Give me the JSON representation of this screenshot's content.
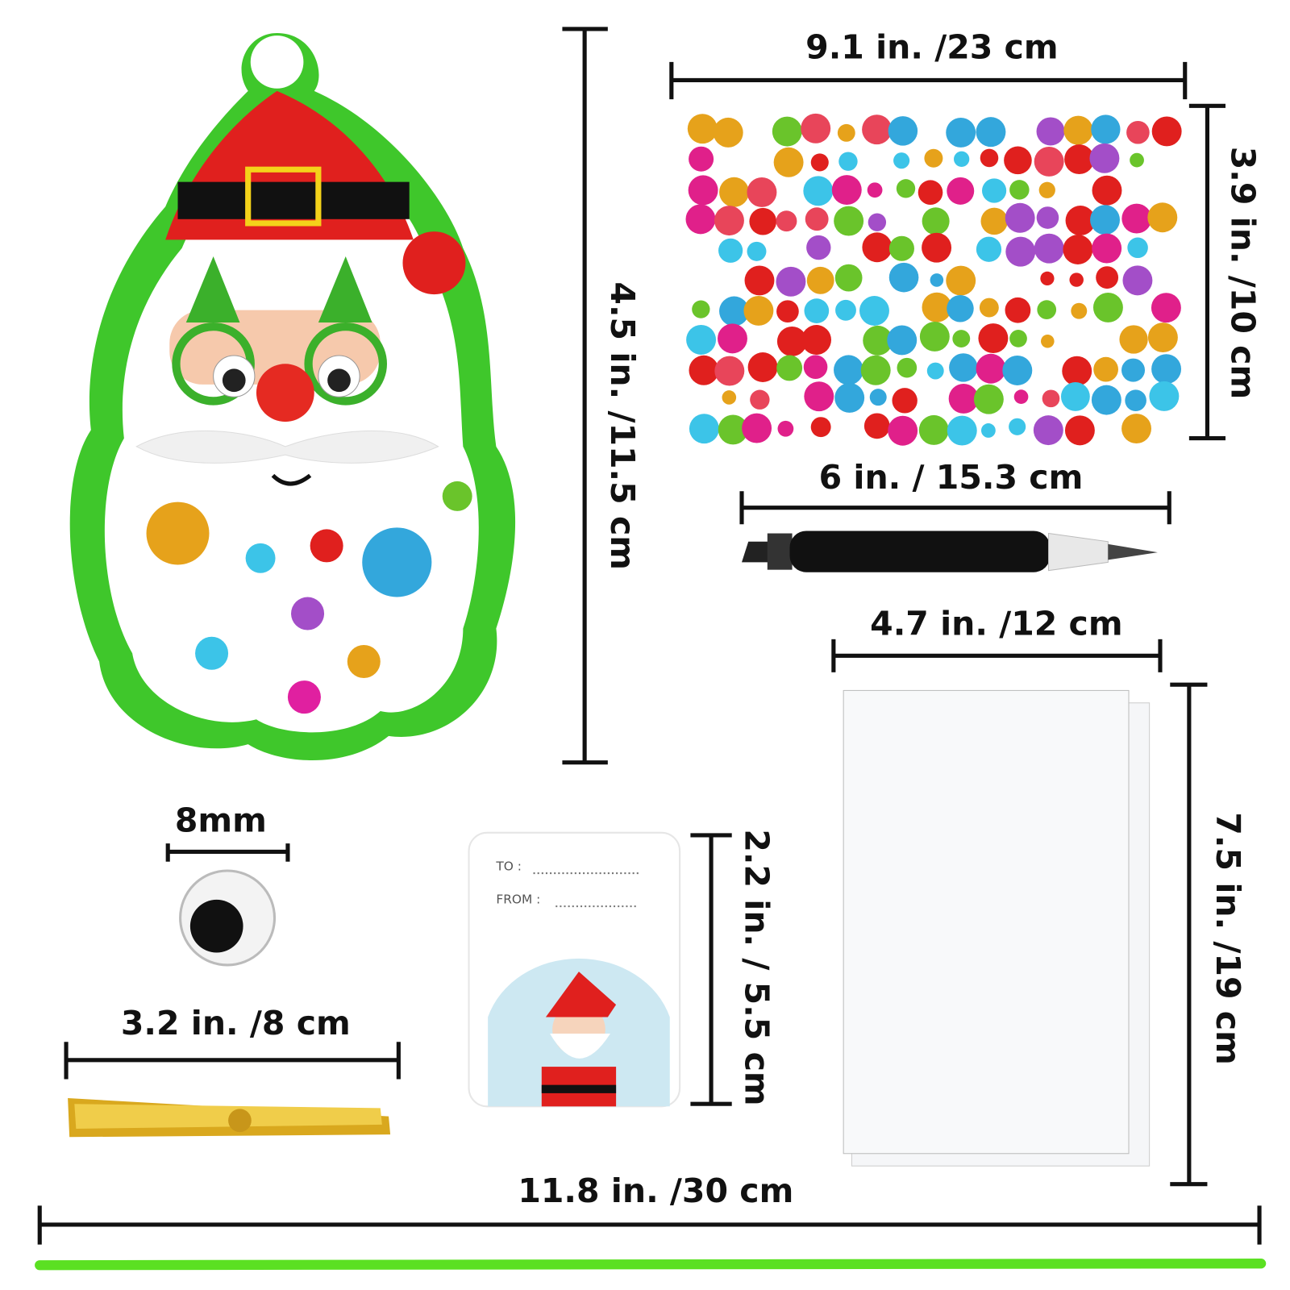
{
  "dimensions": {
    "craft_height": "4.5 in. /11.5 cm",
    "sticker_width": "9.1 in. /23 cm",
    "sticker_height": "3.9 in. /10 cm",
    "marker_length": "6 in. / 15.3 cm",
    "bag_width": "4.7 in. /12 cm",
    "bag_height": "7.5 in. /19 cm",
    "eye_size": "8mm",
    "twist_tie_length": "3.2 in. /8 cm",
    "tag_height": "2.2 in. / 5.5 cm",
    "cord_length": "11.8 in. /30 cm"
  },
  "gift_tag": {
    "to": "TO :",
    "from": "FROM :"
  }
}
